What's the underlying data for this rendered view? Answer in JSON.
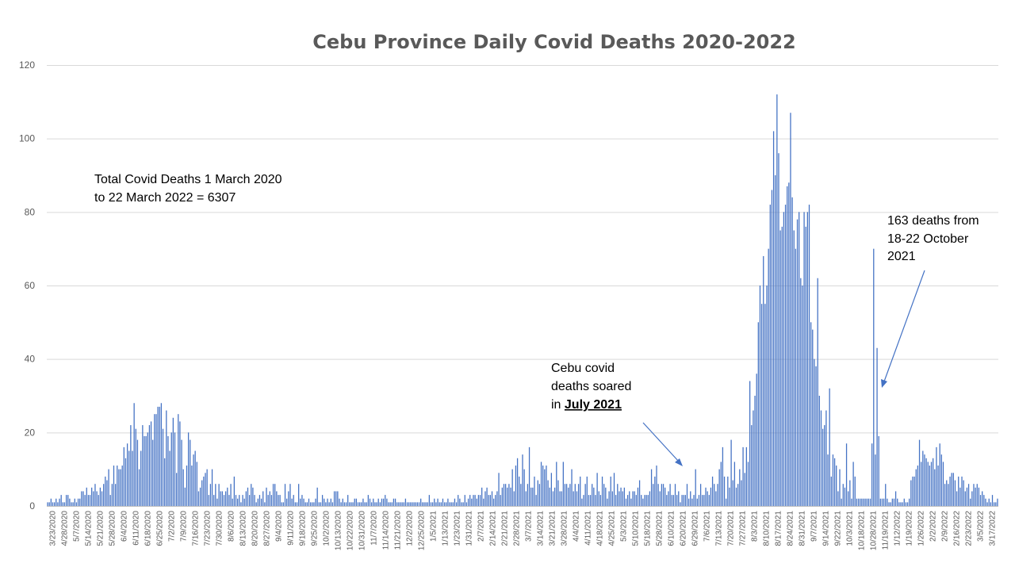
{
  "chart_data": {
    "type": "bar",
    "title": "Cebu Province Daily Covid Deaths 2020-2022",
    "xlabel": "",
    "ylabel": "",
    "ylim": [
      0,
      120
    ],
    "yticks": [
      0,
      20,
      40,
      60,
      80,
      100,
      120
    ],
    "grid": true,
    "bar_color": "#4472c4",
    "x_tick_labels": [
      "3/23/2020",
      "4/28/2020",
      "5/7/2020",
      "5/14/2020",
      "5/21/2020",
      "5/28/2020",
      "6/4/2020",
      "6/11/2020",
      "6/18/2020",
      "6/25/2020",
      "7/2/2020",
      "7/9/2020",
      "7/16/2020",
      "7/23/2020",
      "7/30/2020",
      "8/6/2020",
      "8/13/2020",
      "8/20/2020",
      "8/27/2020",
      "9/4/2020",
      "9/11/2020",
      "9/18/2020",
      "9/25/2020",
      "10/2/2020",
      "10/13/2020",
      "10/22/2020",
      "10/31/2020",
      "11/7/2020",
      "11/14/2020",
      "11/21/2020",
      "12/2/2020",
      "12/25/2020",
      "1/5/2021",
      "1/13/2021",
      "1/23/2021",
      "1/31/2021",
      "2/7/2021",
      "2/14/2021",
      "2/21/2021",
      "2/28/2021",
      "3/7/2021",
      "3/14/2021",
      "3/21/2021",
      "3/28/2021",
      "4/4/2021",
      "4/11/2021",
      "4/18/2021",
      "4/25/2021",
      "5/3/2021",
      "5/10/2021",
      "5/18/2021",
      "5/28/2021",
      "6/10/2021",
      "6/20/2021",
      "6/29/2021",
      "7/6/2021",
      "7/13/2021",
      "7/20/2021",
      "7/27/2021",
      "8/3/2021",
      "8/10/2021",
      "8/17/2021",
      "8/24/2021",
      "8/31/2021",
      "9/7/2021",
      "9/14/2021",
      "9/22/2021",
      "10/3/2021",
      "10/18/2021",
      "10/28/2021",
      "11/19/2021",
      "1/12/2022",
      "1/19/2022",
      "1/26/2022",
      "2/2/2022",
      "2/9/2022",
      "2/16/2022",
      "2/23/2022",
      "3/5/2022",
      "3/17/2022"
    ],
    "values": [
      1,
      1,
      2,
      1,
      1,
      2,
      1,
      2,
      3,
      1,
      1,
      3,
      3,
      2,
      1,
      1,
      2,
      1,
      2,
      2,
      4,
      4,
      3,
      5,
      3,
      3,
      5,
      4,
      6,
      4,
      3,
      5,
      4,
      6,
      8,
      7,
      10,
      3,
      6,
      11,
      6,
      11,
      10,
      10,
      11,
      16,
      13,
      17,
      15,
      22,
      15,
      28,
      21,
      18,
      10,
      15,
      22,
      19,
      19,
      20,
      22,
      23,
      18,
      25,
      25,
      27,
      27,
      28,
      21,
      13,
      26,
      19,
      15,
      20,
      24,
      20,
      9,
      25,
      23,
      18,
      10,
      5,
      11,
      20,
      18,
      11,
      14,
      15,
      12,
      4,
      5,
      7,
      8,
      9,
      10,
      3,
      6,
      10,
      3,
      6,
      2,
      6,
      4,
      4,
      3,
      4,
      5,
      3,
      6,
      2,
      8,
      3,
      2,
      3,
      1,
      3,
      2,
      4,
      5,
      3,
      6,
      5,
      3,
      1,
      2,
      3,
      2,
      4,
      1,
      5,
      3,
      4,
      3,
      6,
      6,
      4,
      3,
      3,
      1,
      1,
      6,
      2,
      4,
      6,
      2,
      3,
      1,
      1,
      6,
      2,
      3,
      2,
      1,
      1,
      2,
      1,
      1,
      1,
      2,
      5,
      1,
      1,
      3,
      2,
      1,
      2,
      1,
      2,
      1,
      4,
      4,
      4,
      2,
      1,
      2,
      1,
      1,
      3,
      1,
      1,
      1,
      2,
      2,
      1,
      1,
      1,
      2,
      1,
      1,
      3,
      2,
      1,
      2,
      1,
      1,
      2,
      1,
      2,
      2,
      3,
      2,
      1,
      1,
      1,
      2,
      2,
      1,
      1,
      1,
      1,
      1,
      2,
      1,
      1,
      1,
      1,
      1,
      1,
      1,
      1,
      2,
      1,
      1,
      1,
      1,
      3,
      1,
      1,
      2,
      1,
      2,
      1,
      1,
      2,
      1,
      1,
      2,
      1,
      1,
      1,
      2,
      1,
      3,
      2,
      1,
      1,
      3,
      1,
      2,
      3,
      2,
      3,
      3,
      2,
      3,
      3,
      5,
      2,
      4,
      5,
      3,
      3,
      4,
      2,
      3,
      4,
      9,
      3,
      5,
      6,
      6,
      5,
      6,
      5,
      10,
      4,
      11,
      13,
      8,
      6,
      14,
      10,
      4,
      6,
      16,
      5,
      5,
      8,
      3,
      7,
      6,
      12,
      11,
      10,
      11,
      7,
      5,
      9,
      4,
      5,
      12,
      7,
      4,
      4,
      12,
      6,
      6,
      5,
      6,
      10,
      4,
      6,
      4,
      6,
      8,
      2,
      3,
      6,
      8,
      3,
      3,
      6,
      5,
      3,
      9,
      4,
      3,
      8,
      6,
      5,
      2,
      4,
      8,
      4,
      9,
      3,
      6,
      4,
      5,
      4,
      5,
      2,
      3,
      4,
      2,
      4,
      4,
      3,
      5,
      7,
      3,
      2,
      3,
      3,
      3,
      4,
      10,
      6,
      8,
      11,
      6,
      4,
      6,
      6,
      5,
      3,
      4,
      6,
      3,
      3,
      6,
      3,
      4,
      1,
      3,
      3,
      3,
      6,
      2,
      4,
      2,
      3,
      10,
      2,
      3,
      6,
      3,
      3,
      5,
      4,
      3,
      5,
      8,
      6,
      4,
      6,
      10,
      12,
      16,
      8,
      2,
      8,
      5,
      18,
      7,
      12,
      5,
      6,
      10,
      7,
      16,
      9,
      16,
      12,
      34,
      22,
      26,
      30,
      36,
      50,
      60,
      55,
      68,
      55,
      60,
      70,
      82,
      86,
      102,
      90,
      112,
      96,
      75,
      76,
      80,
      82,
      87,
      88,
      107,
      84,
      75,
      70,
      78,
      80,
      62,
      60,
      80,
      76,
      80,
      82,
      50,
      48,
      40,
      38,
      62,
      30,
      26,
      21,
      22,
      26,
      14,
      32,
      8,
      14,
      13,
      11,
      4,
      10,
      2,
      6,
      5,
      17,
      4,
      7,
      2,
      12,
      8,
      2,
      2,
      2,
      2,
      2,
      2,
      2,
      2,
      2,
      17,
      70,
      14,
      43,
      19,
      2,
      2,
      2,
      6,
      2,
      1,
      1,
      2,
      2,
      4,
      2,
      1,
      1,
      1,
      2,
      1,
      1,
      2,
      7,
      8,
      8,
      10,
      11,
      18,
      12,
      15,
      14,
      13,
      12,
      11,
      12,
      13,
      10,
      16,
      11,
      17,
      14,
      12,
      6,
      7,
      6,
      8,
      9,
      9,
      7,
      4,
      8,
      5,
      8,
      7,
      4,
      5,
      6,
      2,
      4,
      6,
      5,
      6,
      5,
      3,
      4,
      3,
      2,
      1,
      2,
      1,
      3,
      1,
      1,
      2
    ]
  },
  "annotations": {
    "total_line1": "Total Covid Deaths 1 March 2020",
    "total_line2": "to 22 March 2022 = 6307",
    "july_line1": "Cebu covid",
    "july_line2": "deaths soared",
    "july_line3_prefix": "in ",
    "july_line3_emph": "July 2021",
    "oct_line1": "163 deaths from",
    "oct_line2": "18-22 October",
    "oct_line3": "2021"
  }
}
